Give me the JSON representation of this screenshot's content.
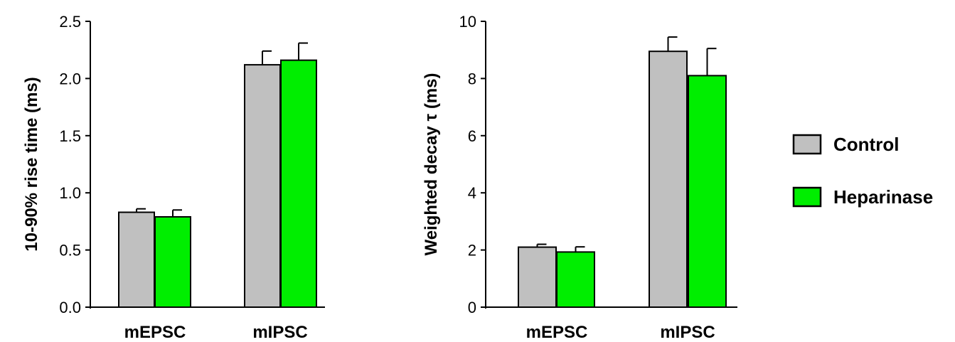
{
  "chart_data": [
    {
      "type": "bar",
      "title": "",
      "xlabel": "",
      "ylabel": "10-90% rise time (ms)",
      "categories": [
        "mEPSC",
        "mIPSC"
      ],
      "ylim": [
        0,
        2.5
      ],
      "yticks": [
        0.0,
        0.5,
        1.0,
        1.5,
        2.0,
        2.5
      ],
      "ytick_labels": [
        "0.0",
        "0.5",
        "1.0",
        "1.5",
        "2.0",
        "2.5"
      ],
      "series": [
        {
          "name": "Control",
          "color": "#c0c0c0",
          "values": [
            0.83,
            2.12
          ],
          "errors": [
            0.03,
            0.12
          ]
        },
        {
          "name": "Heparinase",
          "color": "#00ee00",
          "values": [
            0.79,
            2.16
          ],
          "errors": [
            0.06,
            0.15
          ]
        }
      ],
      "grid": false
    },
    {
      "type": "bar",
      "title": "",
      "xlabel": "",
      "ylabel": "Weighted decay τ (ms)",
      "categories": [
        "mEPSC",
        "mIPSC"
      ],
      "ylim": [
        0,
        10
      ],
      "yticks": [
        0,
        2,
        4,
        6,
        8,
        10
      ],
      "ytick_labels": [
        "0",
        "2",
        "4",
        "6",
        "8",
        "10"
      ],
      "series": [
        {
          "name": "Control",
          "color": "#c0c0c0",
          "values": [
            2.1,
            8.95
          ],
          "errors": [
            0.1,
            0.5
          ]
        },
        {
          "name": "Heparinase",
          "color": "#00ee00",
          "values": [
            1.93,
            8.1
          ],
          "errors": [
            0.18,
            0.95
          ]
        }
      ],
      "grid": false
    }
  ],
  "legend": {
    "placement": "right",
    "entries": [
      {
        "label": "Control",
        "color": "#c0c0c0"
      },
      {
        "label": "Heparinase",
        "color": "#00ee00"
      }
    ]
  }
}
